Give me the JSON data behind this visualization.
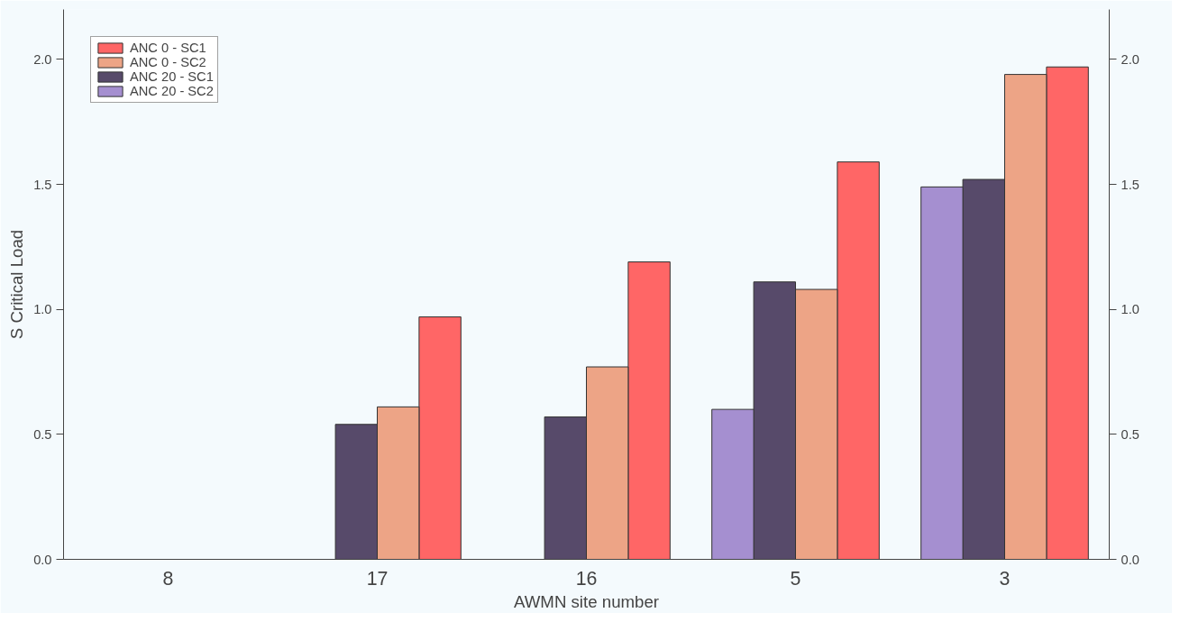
{
  "chart_data": {
    "type": "bar",
    "xlabel": "AWMN site number",
    "ylabel": "S Critical Load",
    "categories": [
      "8",
      "17",
      "16",
      "5",
      "3"
    ],
    "series": [
      {
        "name": "ANC 0 - SC1",
        "color": "#ff6666",
        "values": [
          null,
          0.97,
          1.19,
          1.59,
          1.97
        ]
      },
      {
        "name": "ANC 0 - SC2",
        "color": "#eda486",
        "values": [
          null,
          0.61,
          0.77,
          1.08,
          1.94
        ]
      },
      {
        "name": "ANC 20 - SC1",
        "color": "#574a6a",
        "values": [
          null,
          0.54,
          0.57,
          1.11,
          1.52
        ]
      },
      {
        "name": "ANC 20 - SC2",
        "color": "#a58fd0",
        "values": [
          null,
          null,
          null,
          0.6,
          1.49
        ]
      }
    ],
    "ylim": [
      0,
      2.2
    ],
    "yticks": [
      {
        "value": 0,
        "label": "0.0"
      },
      0.5,
      {
        "value": 1,
        "label": "1.0"
      },
      1.5,
      {
        "value": 2,
        "label": "2.0"
      }
    ],
    "y2lim": [
      0,
      2.2
    ],
    "y2ticks": [
      {
        "value": 0,
        "label": "0.0"
      },
      0.5,
      {
        "value": 1,
        "label": "1.0"
      },
      1.5,
      {
        "value": 2,
        "label": "2.0"
      }
    ],
    "grid": false,
    "legend": "top left"
  }
}
